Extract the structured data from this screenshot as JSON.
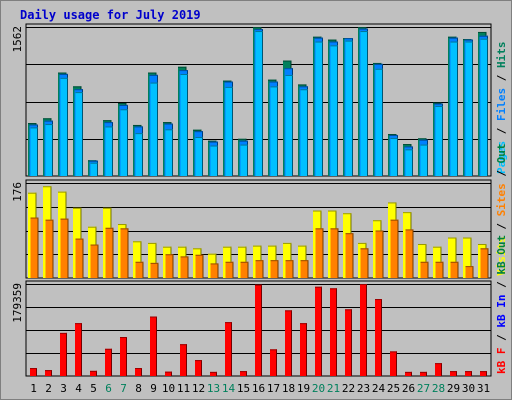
{
  "chart_data": {
    "type": "bar",
    "title": "Daily usage for July 2019",
    "days": [
      1,
      2,
      3,
      4,
      5,
      6,
      7,
      8,
      9,
      10,
      11,
      12,
      13,
      14,
      15,
      16,
      17,
      18,
      19,
      20,
      21,
      22,
      23,
      24,
      25,
      26,
      27,
      28,
      29,
      30,
      31
    ],
    "weekend_days": [
      6,
      7,
      13,
      14,
      20,
      21,
      27,
      28
    ],
    "colors": {
      "title": "#0000cc",
      "plot_bg": "#c0c0c0",
      "border": "#7f7f7f",
      "grid": "#000000",
      "hits": "#00805c",
      "files": "#0080ff",
      "pages": "#00c0ff",
      "visits": "#ffff00",
      "sites": "#ff8000",
      "kbin": "#0000ff",
      "kbout": "#008040",
      "kbf": "#ff0000",
      "weekday_label": "#000000",
      "weekend_label": "#00805c"
    },
    "panels": [
      {
        "id": "hits-files-pages",
        "ymax_label": "1562",
        "ymax": 1562,
        "legend": [
          {
            "text": "Pages",
            "color": "#00c0ff"
          },
          {
            "text": "Files",
            "color": "#0080ff"
          },
          {
            "text": "Hits",
            "color": "#00805c"
          }
        ],
        "series": [
          {
            "name": "Hits",
            "color": "#00805c",
            "values": [
              555,
              605,
              1085,
              940,
              165,
              585,
              765,
              535,
              1085,
              565,
              1145,
              485,
              370,
              1000,
              390,
              1560,
              1010,
              1210,
              960,
              1460,
              1430,
              1445,
              1560,
              1185,
              440,
              335,
              395,
              770,
              1460,
              1435,
              1510
            ]
          },
          {
            "name": "Files",
            "color": "#0080ff",
            "values": [
              540,
              580,
              1070,
              910,
              160,
              565,
              745,
              520,
              1060,
              550,
              1110,
              470,
              360,
              990,
              370,
              1540,
              990,
              1130,
              940,
              1450,
              1410,
              1445,
              1545,
              1175,
              430,
              310,
              380,
              760,
              1450,
              1430,
              1470
            ]
          },
          {
            "name": "Pages",
            "color": "#00c0ff",
            "values": [
              520,
              555,
              1040,
              890,
              150,
              530,
              710,
              460,
              990,
              500,
              1080,
              420,
              330,
              945,
              340,
              1530,
              950,
              1070,
              920,
              1420,
              1380,
              1430,
              1530,
              1135,
              410,
              290,
              340,
              745,
              1420,
              1420,
              1450
            ]
          }
        ]
      },
      {
        "id": "visits-sites",
        "ymax_label": "176",
        "ymax": 176,
        "legend": [
          {
            "text": "Visits",
            "color": "#ffff00"
          },
          {
            "text": "Sites",
            "color": "#ff8000"
          },
          {
            "text": "Out",
            "color": "#008040"
          }
        ],
        "series": [
          {
            "name": "Visits",
            "color": "#ffff00",
            "values": [
              158,
              170,
              160,
              130,
              95,
              130,
              100,
              68,
              65,
              58,
              58,
              55,
              45,
              58,
              58,
              60,
              60,
              65,
              60,
              125,
              125,
              120,
              65,
              107,
              140,
              122,
              63,
              58,
              75,
              75,
              63
            ]
          },
          {
            "name": "Sites",
            "color": "#ff8000",
            "values": [
              112,
              108,
              110,
              73,
              62,
              93,
              92,
              30,
              28,
              44,
              40,
              43,
              27,
              30,
              30,
              33,
              33,
              33,
              33,
              92,
              92,
              83,
              55,
              88,
              108,
              90,
              30,
              30,
              30,
              22,
              55
            ]
          }
        ]
      },
      {
        "id": "kb",
        "ymax_label": "179359",
        "ymax": 179359,
        "legend": [
          {
            "text": "kB F",
            "color": "#ff0000"
          },
          {
            "text": "kB In",
            "color": "#0000ff"
          },
          {
            "text": "kB Out",
            "color": "#008040"
          }
        ],
        "series": [
          {
            "name": "kB F",
            "color": "#ff0000",
            "values": [
              15500,
              11500,
              84000,
              103000,
              10000,
              53000,
              76000,
              15500,
              116000,
              8500,
              62000,
              31000,
              8000,
              105000,
              9500,
              178000,
              52000,
              128000,
              103000,
              174000,
              171000,
              130000,
              179359,
              150000,
              48000,
              8000,
              8000,
              25000,
              9500,
              9500,
              9500
            ]
          }
        ]
      }
    ]
  }
}
